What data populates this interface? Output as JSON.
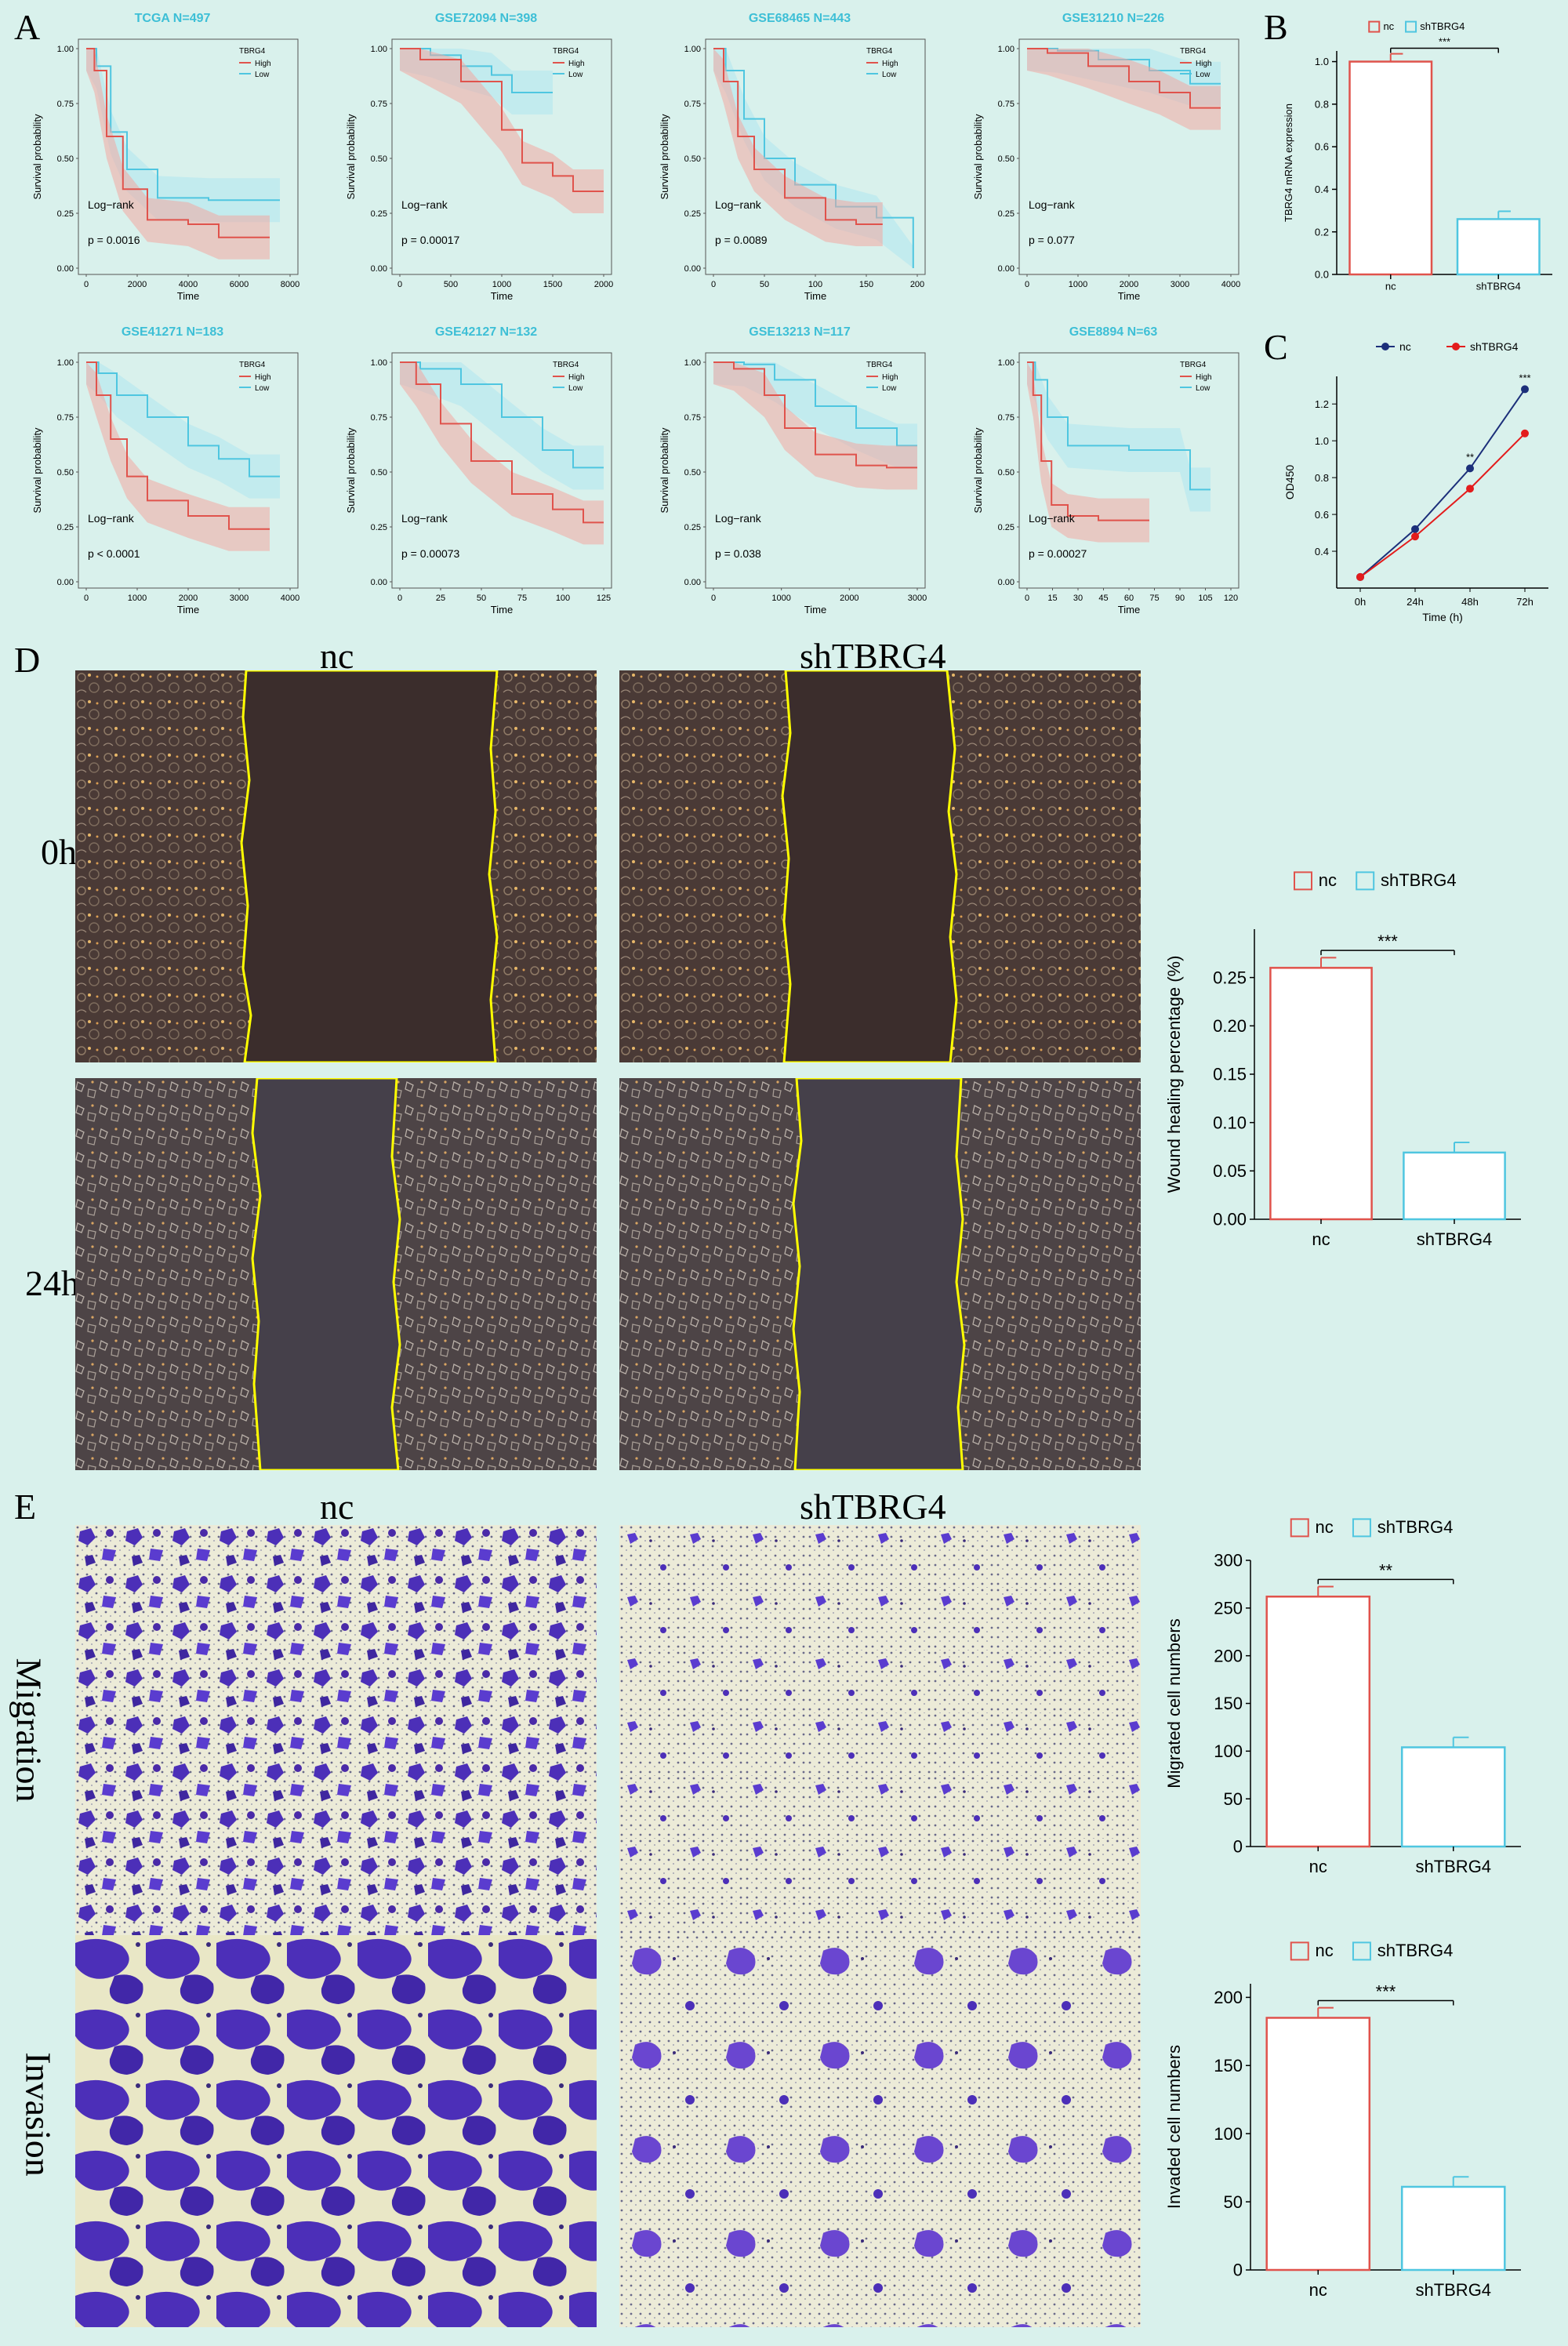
{
  "panel_letters": {
    "A": "A",
    "B": "B",
    "C": "C",
    "D": "D",
    "E": "E"
  },
  "km_common": {
    "legend_title": "TBRG4",
    "legend_high": "High",
    "legend_low": "Low",
    "ylabel": "Survival probability",
    "xlabel": "Time",
    "logrank_label": "Log−rank",
    "yticks": [
      "0.00",
      "0.25",
      "0.50",
      "0.75",
      "1.00"
    ],
    "colors": {
      "high": "#e0534c",
      "low": "#4fc6e0",
      "high_fill": "#f2a7a3",
      "low_fill": "#aee5f1"
    }
  },
  "km_plots": [
    {
      "title": "TCGA N=497",
      "p": "p = 0.0016",
      "xticks": [
        "0",
        "2000",
        "4000",
        "6000",
        "8000"
      ],
      "xmax": 8000
    },
    {
      "title": "GSE72094 N=398",
      "p": "p = 0.00017",
      "xticks": [
        "0",
        "500",
        "1000",
        "1500",
        "2000"
      ],
      "xmax": 2000
    },
    {
      "title": "GSE68465 N=443",
      "p": "p = 0.0089",
      "xticks": [
        "0",
        "50",
        "100",
        "150",
        "200"
      ],
      "xmax": 200
    },
    {
      "title": "GSE31210 N=226",
      "p": "p = 0.077",
      "xticks": [
        "0",
        "1000",
        "2000",
        "3000",
        "4000"
      ],
      "xmax": 4000
    },
    {
      "title": "GSE41271 N=183",
      "p": "p < 0.0001",
      "xticks": [
        "0",
        "1000",
        "2000",
        "3000",
        "4000"
      ],
      "xmax": 4000
    },
    {
      "title": "GSE42127 N=132",
      "p": "p = 0.00073",
      "xticks": [
        "0",
        "25",
        "50",
        "75",
        "100",
        "125"
      ],
      "xmax": 125
    },
    {
      "title": "GSE13213 N=117",
      "p": "p = 0.038",
      "xticks": [
        "0",
        "1000",
        "2000",
        "3000"
      ],
      "xmax": 3000
    },
    {
      "title": "GSE8894 N=63",
      "p": "p = 0.00027",
      "xticks": [
        "0",
        "15",
        "30",
        "45",
        "60",
        "75",
        "90",
        "105",
        "120"
      ],
      "xmax": 125
    }
  ],
  "chart_data": [
    {
      "type": "bar",
      "id": "B",
      "categories": [
        "nc",
        "shTBRG4"
      ],
      "values": [
        1.0,
        0.26
      ],
      "ylabel": "TBRG4 mRNA expression",
      "yticks": [
        "0.0",
        "0.2",
        "0.4",
        "0.6",
        "0.8",
        "1.0"
      ],
      "ylim": [
        0,
        1.05
      ],
      "legend": [
        "nc",
        "shTBRG4"
      ],
      "significance": "***"
    },
    {
      "type": "line",
      "id": "C",
      "x": [
        "0h",
        "24h",
        "48h",
        "72h"
      ],
      "series": [
        {
          "name": "nc",
          "values": [
            0.26,
            0.52,
            0.85,
            1.28
          ]
        },
        {
          "name": "shTBRG4",
          "values": [
            0.26,
            0.48,
            0.74,
            1.04
          ]
        }
      ],
      "xlabel": "Time (h)",
      "ylabel": "OD450",
      "yticks": [
        "0.4",
        "0.6",
        "0.8",
        "1.0",
        "1.2"
      ],
      "ylim": [
        0.2,
        1.35
      ],
      "significance": [
        "",
        "",
        "**",
        "***"
      ]
    },
    {
      "type": "bar",
      "id": "D",
      "categories": [
        "nc",
        "shTBRG4"
      ],
      "values": [
        0.26,
        0.069
      ],
      "ylabel": "Wound healing percentage (%)",
      "yticks": [
        "0.00",
        "0.05",
        "0.10",
        "0.15",
        "0.20",
        "0.25"
      ],
      "ylim": [
        0,
        0.3
      ],
      "legend": [
        "nc",
        "shTBRG4"
      ],
      "significance": "***"
    },
    {
      "type": "bar",
      "id": "E-migration",
      "categories": [
        "nc",
        "shTBRG4"
      ],
      "values": [
        262,
        104
      ],
      "ylabel": "Migrated cell numbers",
      "yticks": [
        "0",
        "50",
        "100",
        "150",
        "200",
        "250",
        "300"
      ],
      "ylim": [
        0,
        300
      ],
      "legend": [
        "nc",
        "shTBRG4"
      ],
      "significance": "**"
    },
    {
      "type": "bar",
      "id": "E-invasion",
      "categories": [
        "nc",
        "shTBRG4"
      ],
      "values": [
        185,
        61
      ],
      "ylabel": "Invaded cell numbers",
      "yticks": [
        "0",
        "50",
        "100",
        "150",
        "200"
      ],
      "ylim": [
        0,
        210
      ],
      "legend": [
        "nc",
        "shTBRG4"
      ],
      "significance": "***"
    }
  ],
  "D_labels": {
    "nc": "nc",
    "sh": "shTBRG4",
    "t0": "0h",
    "t24": "24h"
  },
  "E_labels": {
    "nc": "nc",
    "sh": "shTBRG4",
    "migration": "Migration",
    "invasion": "Invasion"
  },
  "colors": {
    "nc": "#e0534c",
    "sh": "#4fc6e0",
    "c_nc": "#1c2f7a",
    "c_sh": "#e31c1c",
    "line_yellow": "#ffff00",
    "stain": "#4c2fb8",
    "bg": "#d9f1ec"
  }
}
